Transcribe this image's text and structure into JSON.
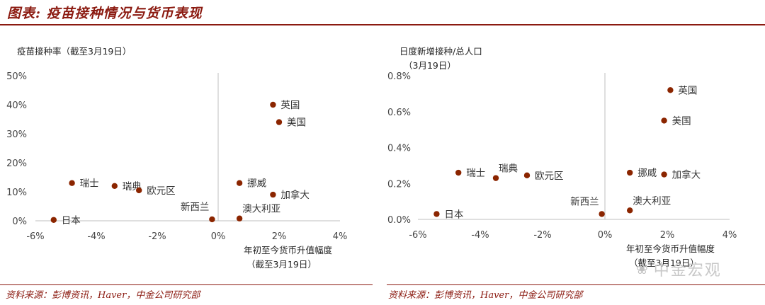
{
  "page": {
    "title": "图表: 疫苗接种情况与货币表现",
    "watermark": "中金宏观",
    "watermark_icon": "wechat-icon",
    "accent": "#8b1a10",
    "marker_color": "#8b2500"
  },
  "chart_data": [
    {
      "type": "scatter",
      "title": "疫苗接种率（截至3月19日）",
      "xlabel_line1": "年初至今货币升值幅度",
      "xlabel_line2": "（截至3月19日）",
      "xlim": [
        -6,
        4
      ],
      "ylim": [
        0,
        50
      ],
      "xticks": [
        -6,
        -4,
        -2,
        0,
        2,
        4
      ],
      "xtick_labels": [
        "-6%",
        "-4%",
        "-2%",
        "0%",
        "2%",
        "4%"
      ],
      "yticks": [
        0,
        10,
        20,
        30,
        40,
        50
      ],
      "ytick_labels": [
        "0%",
        "10%",
        "20%",
        "30%",
        "40%",
        "50%"
      ],
      "grid": false,
      "points": [
        {
          "name": "英国",
          "x": 1.8,
          "y": 40,
          "label": "right"
        },
        {
          "name": "美国",
          "x": 2.0,
          "y": 34,
          "label": "right"
        },
        {
          "name": "瑞士",
          "x": -4.8,
          "y": 13,
          "label": "right"
        },
        {
          "name": "瑞典",
          "x": -3.4,
          "y": 12,
          "label": "right"
        },
        {
          "name": "欧元区",
          "x": -2.6,
          "y": 10.5,
          "label": "right"
        },
        {
          "name": "挪威",
          "x": 0.7,
          "y": 13,
          "label": "right"
        },
        {
          "name": "加拿大",
          "x": 1.8,
          "y": 9,
          "label": "right"
        },
        {
          "name": "日本",
          "x": -5.4,
          "y": 0.3,
          "label": "right"
        },
        {
          "name": "新西兰",
          "x": -0.2,
          "y": 0.5,
          "label": "above-left"
        },
        {
          "name": "澳大利亚",
          "x": 0.7,
          "y": 0.8,
          "label": "above-right"
        }
      ],
      "source": "资料来源：彭博资讯，Haver，中金公司研究部"
    },
    {
      "type": "scatter",
      "title_line1": "日度新增接种/总人口",
      "title_line2": "（3月19日）",
      "xlabel_line1": "年初至今货币升值幅度",
      "xlabel_line2": "（截至3月19日）",
      "xlim": [
        -6,
        4
      ],
      "ylim": [
        0,
        0.8
      ],
      "xticks": [
        -6,
        -4,
        -2,
        0,
        2,
        4
      ],
      "xtick_labels": [
        "-6%",
        "-4%",
        "-2%",
        "0%",
        "2%",
        "4%"
      ],
      "yticks": [
        0,
        0.2,
        0.4,
        0.6,
        0.8
      ],
      "ytick_labels": [
        "0.0%",
        "0.2%",
        "0.4%",
        "0.6%",
        "0.8%"
      ],
      "grid": false,
      "points": [
        {
          "name": "英国",
          "x": 2.1,
          "y": 0.72,
          "label": "right"
        },
        {
          "name": "美国",
          "x": 1.9,
          "y": 0.55,
          "label": "right"
        },
        {
          "name": "瑞士",
          "x": -4.7,
          "y": 0.26,
          "label": "right"
        },
        {
          "name": "瑞典",
          "x": -3.5,
          "y": 0.23,
          "label": "above-right"
        },
        {
          "name": "欧元区",
          "x": -2.5,
          "y": 0.245,
          "label": "right"
        },
        {
          "name": "挪威",
          "x": 0.8,
          "y": 0.26,
          "label": "right"
        },
        {
          "name": "加拿大",
          "x": 1.9,
          "y": 0.25,
          "label": "right"
        },
        {
          "name": "日本",
          "x": -5.4,
          "y": 0.03,
          "label": "right"
        },
        {
          "name": "新西兰",
          "x": -0.1,
          "y": 0.03,
          "label": "above-left"
        },
        {
          "name": "澳大利亚",
          "x": 0.8,
          "y": 0.05,
          "label": "above-right"
        }
      ],
      "source": "资料来源：彭博资讯，Haver，中金公司研究部"
    }
  ]
}
